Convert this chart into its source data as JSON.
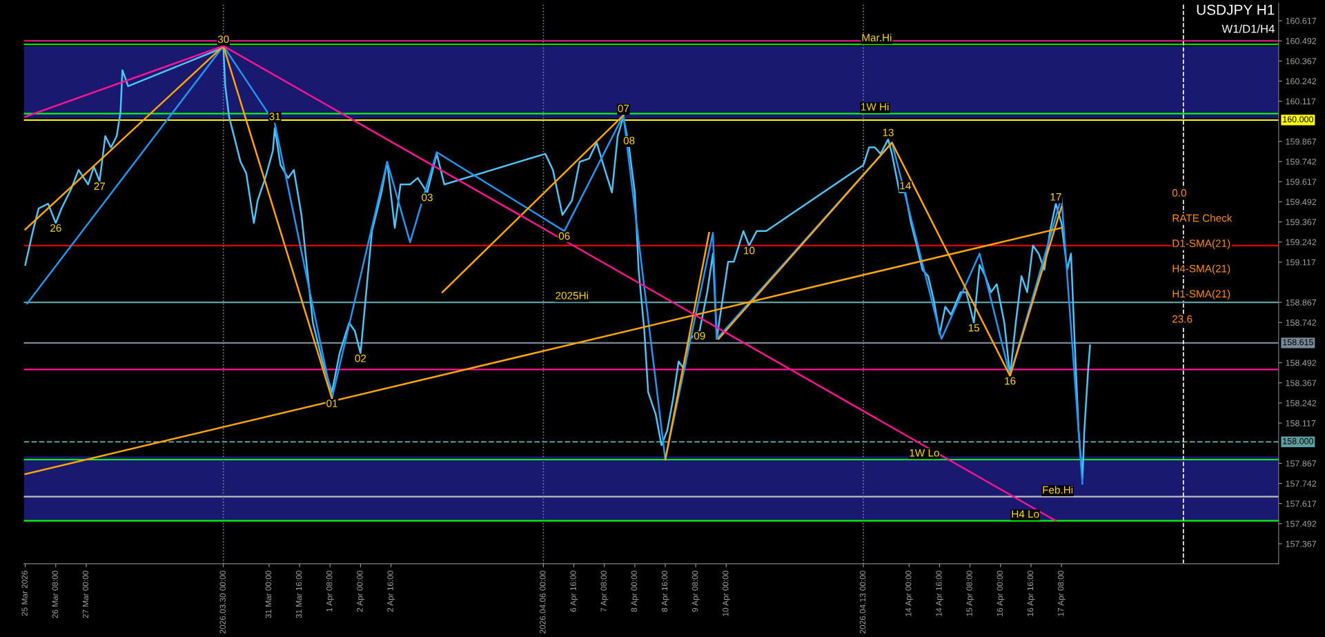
{
  "chart_data": {
    "type": "line",
    "title": "USDJPY H1",
    "subtitle": "W1/D1/H4",
    "xlim": [
      "2026-03-25T15:15",
      "2026-04-22T02:00"
    ],
    "ylim": [
      157.243,
      160.726
    ],
    "xticks": [
      {
        "value": "2026-03-25T16:00",
        "label": "25 Mar 2026"
      },
      {
        "value": "2026-03-26T08:00",
        "label": "26 Mar 08:00"
      },
      {
        "value": "2026-03-27T00:00",
        "label": "27 Mar 00:00"
      },
      {
        "value": "2026-03-30T00:00",
        "label": "2026.03.30 00:00"
      },
      {
        "value": "2026-03-31T00:00",
        "label": "31 Mar 00:00"
      },
      {
        "value": "2026-03-31T16:00",
        "label": "31 Mar 16:00"
      },
      {
        "value": "2026-04-01T08:00",
        "label": "1 Apr 08:00"
      },
      {
        "value": "2026-04-02T00:00",
        "label": "2 Apr 00:00"
      },
      {
        "value": "2026-04-02T16:00",
        "label": "2 Apr 16:00"
      },
      {
        "value": "2026-04-06T00:00",
        "label": "2026.04.06 00:00"
      },
      {
        "value": "2026-04-06T16:00",
        "label": "6 Apr 16:00"
      },
      {
        "value": "2026-04-07T08:00",
        "label": "7 Apr 08:00"
      },
      {
        "value": "2026-04-08T00:00",
        "label": "8 Apr 00:00"
      },
      {
        "value": "2026-04-08T16:00",
        "label": "8 Apr 16:00"
      },
      {
        "value": "2026-04-09T08:00",
        "label": "9 Apr 08:00"
      },
      {
        "value": "2026-04-10T00:00",
        "label": "10 Apr 00:00"
      },
      {
        "value": "2026-04-13T00:00",
        "label": "2026.04.13 00:00"
      },
      {
        "value": "2026-04-14T00:00",
        "label": "14 Apr 00:00"
      },
      {
        "value": "2026-04-14T16:00",
        "label": "14 Apr 16:00"
      },
      {
        "value": "2026-04-15T08:00",
        "label": "15 Apr 08:00"
      },
      {
        "value": "2026-04-16T00:00",
        "label": "16 Apr 00:00"
      },
      {
        "value": "2026-04-16T16:00",
        "label": "16 Apr 16:00"
      },
      {
        "value": "2026-04-17T08:00",
        "label": "17 Apr 08:00"
      }
    ],
    "yticks": [
      160.617,
      160.492,
      160.367,
      160.242,
      160.117,
      159.867,
      159.742,
      159.617,
      159.492,
      159.367,
      159.242,
      159.117,
      158.867,
      158.742,
      158.492,
      158.367,
      158.242,
      158.117,
      157.867,
      157.742,
      157.617,
      157.492,
      157.367
    ],
    "grid": false,
    "legend": false,
    "marker": "none",
    "series": [
      {
        "color": "#4fc3f7",
        "x": [
          "2026-03-25T16:00",
          "2026-03-25T20:00",
          "2026-03-25T23:00",
          "2026-03-26T04:00",
          "2026-03-26T08:00",
          "2026-03-26T11:00",
          "2026-03-26T16:00",
          "2026-03-26T20:00",
          "2026-03-27T01:00",
          "2026-03-27T04:00",
          "2026-03-27T07:00",
          "2026-03-27T10:00",
          "2026-03-27T13:00",
          "2026-03-27T16:00",
          "2026-03-27T18:00",
          "2026-03-27T19:00",
          "2026-03-27T22:00",
          "2026-03-30T00:00",
          "2026-03-30T01:00",
          "2026-03-30T03:00",
          "2026-03-30T06:00",
          "2026-03-30T09:00",
          "2026-03-30T12:00",
          "2026-03-30T16:00",
          "2026-03-30T18:00",
          "2026-03-30T22:00",
          "2026-03-31T02:00",
          "2026-03-31T03:00",
          "2026-03-31T06:00",
          "2026-03-31T10:00",
          "2026-03-31T13:00",
          "2026-03-31T17:00",
          "2026-03-31T20:00",
          "2026-03-31T23:00",
          "2026-04-01T04:00",
          "2026-04-01T09:00",
          "2026-04-01T13:00",
          "2026-04-01T18:00",
          "2026-04-01T21:00",
          "2026-04-02T00:00",
          "2026-04-02T03:00",
          "2026-04-02T06:00",
          "2026-04-02T11:00",
          "2026-04-02T14:00",
          "2026-04-02T18:00",
          "2026-04-02T21:00",
          "2026-04-03T02:00",
          "2026-04-03T06:00",
          "2026-04-03T11:00",
          "2026-04-03T16:00",
          "2026-04-03T20:00",
          "2026-04-06T01:00",
          "2026-04-06T05:00",
          "2026-04-06T10:00",
          "2026-04-06T15:00",
          "2026-04-06T19:00",
          "2026-04-07T00:00",
          "2026-04-07T04:00",
          "2026-04-07T07:00",
          "2026-04-07T12:00",
          "2026-04-07T15:00",
          "2026-04-07T18:00",
          "2026-04-07T21:00",
          "2026-04-08T00:00",
          "2026-04-08T02:00",
          "2026-04-08T05:00",
          "2026-04-08T07:00",
          "2026-04-08T11:00",
          "2026-04-08T14:00",
          "2026-04-08T17:00",
          "2026-04-08T20:00",
          "2026-04-08T23:00",
          "2026-04-09T02:00",
          "2026-04-09T05:00",
          "2026-04-09T10:00",
          "2026-04-09T14:00",
          "2026-04-09T17:00",
          "2026-04-09T19:00",
          "2026-04-09T22:00",
          "2026-04-10T01:00",
          "2026-04-10T04:00",
          "2026-04-10T09:00",
          "2026-04-10T12:00",
          "2026-04-10T16:00",
          "2026-04-10T21:00",
          "2026-04-13T00:00",
          "2026-04-13T03:00",
          "2026-04-13T06:00",
          "2026-04-13T09:00",
          "2026-04-13T13:00",
          "2026-04-13T15:00",
          "2026-04-13T19:00",
          "2026-04-13T22:00",
          "2026-04-14T01:00",
          "2026-04-14T04:00",
          "2026-04-14T07:00",
          "2026-04-14T10:00",
          "2026-04-14T13:00",
          "2026-04-14T16:00",
          "2026-04-14T19:00",
          "2026-04-14T22:00",
          "2026-04-15T03:00",
          "2026-04-15T06:00",
          "2026-04-15T10:00",
          "2026-04-15T13:00",
          "2026-04-15T16:00",
          "2026-04-15T19:00",
          "2026-04-15T22:00",
          "2026-04-16T02:00",
          "2026-04-16T05:00",
          "2026-04-16T08:00",
          "2026-04-16T11:00",
          "2026-04-16T14:00",
          "2026-04-16T17:00",
          "2026-04-16T20:00",
          "2026-04-16T23:00",
          "2026-04-17T02:00",
          "2026-04-17T05:00",
          "2026-04-17T08:00",
          "2026-04-17T11:00",
          "2026-04-17T13:00",
          "2026-04-17T15:00",
          "2026-04-17T17:00",
          "2026-04-17T19:00",
          "2026-04-17T20:00",
          "2026-04-17T22:00",
          "2026-04-17T23:00"
        ],
        "values": [
          159.1,
          159.31,
          159.45,
          159.48,
          159.36,
          159.45,
          159.57,
          159.69,
          159.6,
          159.71,
          159.62,
          159.9,
          159.83,
          159.9,
          160.05,
          160.31,
          160.21,
          160.45,
          160.21,
          160.02,
          159.88,
          159.74,
          159.67,
          159.36,
          159.5,
          159.64,
          159.81,
          159.95,
          159.72,
          159.64,
          159.69,
          159.41,
          159.07,
          158.74,
          158.5,
          158.31,
          158.55,
          158.74,
          158.69,
          158.55,
          158.93,
          159.31,
          159.55,
          159.74,
          159.33,
          159.6,
          159.6,
          159.64,
          159.55,
          159.79,
          159.6,
          159.79,
          159.69,
          159.41,
          159.5,
          159.74,
          159.76,
          159.86,
          159.74,
          159.55,
          159.9,
          160.02,
          159.83,
          159.55,
          159.07,
          158.69,
          158.31,
          158.17,
          157.98,
          158.07,
          158.26,
          158.5,
          158.45,
          158.64,
          158.69,
          158.93,
          159.17,
          158.64,
          158.88,
          159.12,
          159.12,
          159.31,
          159.22,
          159.31,
          159.31,
          159.72,
          159.83,
          159.83,
          159.79,
          159.88,
          159.79,
          159.55,
          159.55,
          159.36,
          159.22,
          159.07,
          159.03,
          158.88,
          158.67,
          158.84,
          158.79,
          158.93,
          158.93,
          158.74,
          159.1,
          159.03,
          158.93,
          158.98,
          158.74,
          158.41,
          158.74,
          159.03,
          158.93,
          159.22,
          159.17,
          159.07,
          159.31,
          159.48,
          159.36,
          159.07,
          159.17,
          158.6,
          158.07,
          157.77,
          158.07,
          158.45,
          158.6
        ]
      },
      {
        "color": "#2196f3",
        "x": [
          "2026-03-25T17:00",
          "2026-03-30T00:00",
          "2026-03-31T03:00",
          "2026-04-01T09:00",
          "2026-04-02T14:00",
          "2026-04-03T02:00",
          "2026-04-03T16:00",
          "2026-04-06T11:00",
          "2026-04-07T18:00",
          "2026-04-08T16:00",
          "2026-04-09T17:00",
          "2026-04-09T19:00",
          "2026-04-13T15:00",
          "2026-04-14T17:00",
          "2026-04-15T13:00",
          "2026-04-16T05:00",
          "2026-04-17T08:00",
          "2026-04-17T19:00"
        ],
        "values": [
          158.86,
          160.46,
          159.98,
          158.27,
          159.74,
          159.24,
          159.8,
          159.31,
          160.03,
          157.89,
          159.3,
          158.64,
          159.86,
          158.64,
          159.17,
          158.41,
          159.52,
          157.74
        ]
      },
      {
        "color": "#ffa500",
        "x": [
          "2026-03-25T16:00",
          "2026-03-30T00:00",
          "2026-04-01T09:00"
        ],
        "values": [
          159.32,
          160.46,
          158.27
        ]
      },
      {
        "color": "#ffa500",
        "x": [
          "2026-04-03T19:00",
          "2026-04-07T18:00"
        ],
        "values": [
          158.93,
          160.03
        ]
      },
      {
        "color": "#ffa500",
        "x": [
          "2026-04-08T16:00",
          "2026-04-09T15:00"
        ],
        "values": [
          157.89,
          159.3
        ]
      },
      {
        "color": "#ffa500",
        "x": [
          "2026-04-09T20:00",
          "2026-04-13T15:00",
          "2026-04-16T05:00",
          "2026-04-17T08:00"
        ],
        "values": [
          158.64,
          159.86,
          158.41,
          159.46
        ]
      },
      {
        "color": "#ffa500",
        "x": [
          "2026-03-25T16:00",
          "2026-04-17T08:00"
        ],
        "values": [
          157.8,
          159.33
        ]
      },
      {
        "color": "#ff1493",
        "x": [
          "2026-03-25T16:00",
          "2026-03-30T00:00",
          "2026-04-17T05:00"
        ],
        "values": [
          160.02,
          160.46,
          157.51
        ]
      }
    ],
    "bands": [
      {
        "axis": "y",
        "from": 160.01,
        "to": 160.46,
        "color": "#191970"
      },
      {
        "axis": "y",
        "from": 157.51,
        "to": 157.91,
        "color": "#191970"
      }
    ],
    "ref_lines": [
      {
        "axis": "y",
        "value": 160.0,
        "label": "160.000",
        "color": "#ffff00"
      },
      {
        "axis": "y",
        "value": 158.615,
        "label": "158.615",
        "color": "#778899"
      },
      {
        "axis": "y",
        "value": 158.0,
        "label": "158.000",
        "color": "#5f9ea0",
        "line_style": "dashed"
      },
      {
        "axis": "y",
        "value": 158.867,
        "color": "#5f9ea0"
      },
      {
        "axis": "y",
        "value": 159.22,
        "color": "#ff0000"
      },
      {
        "axis": "y",
        "value": 160.492,
        "color": "#ff1493"
      },
      {
        "axis": "y",
        "value": 158.45,
        "color": "#ff1493"
      },
      {
        "axis": "y",
        "value": 160.47,
        "color": "#00ff00"
      },
      {
        "axis": "y",
        "value": 160.04,
        "color": "#00ff00"
      },
      {
        "axis": "y",
        "value": 157.89,
        "color": "#00ff00"
      },
      {
        "axis": "y",
        "value": 157.51,
        "color": "#00ff00"
      },
      {
        "axis": "y",
        "value": 157.66,
        "color": "#c0c0c0"
      },
      {
        "axis": "x",
        "value": "2026-03-30T00:00",
        "color": "#778899",
        "line_style": "dotted"
      },
      {
        "axis": "x",
        "value": "2026-04-06T00:00",
        "color": "#778899",
        "line_style": "dotted"
      },
      {
        "axis": "x",
        "value": "2026-04-13T00:00",
        "color": "#778899",
        "line_style": "dotted"
      },
      {
        "axis": "x",
        "value": "2026-04-20T00:00",
        "color": "#ffffff",
        "line_style": "dashed"
      }
    ],
    "annotations": [
      {
        "text": "30",
        "x": "2026-03-30T00:00",
        "y": 160.46
      },
      {
        "text": "31",
        "x": "2026-03-31T03:00",
        "y": 159.98
      },
      {
        "text": "26",
        "x": "2026-03-26T08:00",
        "y": 159.36
      },
      {
        "text": "27",
        "x": "2026-03-27T07:00",
        "y": 159.62
      },
      {
        "text": "01",
        "x": "2026-04-01T09:00",
        "y": 158.27
      },
      {
        "text": "02",
        "x": "2026-04-02T00:00",
        "y": 158.55
      },
      {
        "text": "03",
        "x": "2026-04-03T11:00",
        "y": 159.55
      },
      {
        "text": "06",
        "x": "2026-04-06T11:00",
        "y": 159.31
      },
      {
        "text": "07",
        "x": "2026-04-07T18:00",
        "y": 160.03
      },
      {
        "text": "08",
        "x": "2026-04-07T21:00",
        "y": 159.83
      },
      {
        "text": "09",
        "x": "2026-04-09T10:00",
        "y": 158.69
      },
      {
        "text": "10",
        "x": "2026-04-10T12:00",
        "y": 159.22
      },
      {
        "text": "13",
        "x": "2026-04-13T13:00",
        "y": 159.88
      },
      {
        "text": "14",
        "x": "2026-04-13T22:00",
        "y": 159.55
      },
      {
        "text": "15",
        "x": "2026-04-15T10:00",
        "y": 158.74
      },
      {
        "text": "16",
        "x": "2026-04-16T05:00",
        "y": 158.41
      },
      {
        "text": "17",
        "x": "2026-04-17T05:00",
        "y": 159.48
      },
      {
        "text": "Mar.Hi",
        "x": "2026-04-13T07:00",
        "y": 160.47
      },
      {
        "text": "1W Hi",
        "x": "2026-04-13T06:00",
        "y": 160.04
      },
      {
        "text": "1W Lo",
        "x": "2026-04-14T08:00",
        "y": 157.89
      },
      {
        "text": "H4 Lo",
        "x": "2026-04-16T13:00",
        "y": 157.51
      },
      {
        "text": "Feb.Hi",
        "x": "2026-04-17T06:00",
        "y": 157.66
      },
      {
        "text": "2025Hi",
        "x": "2026-04-06T15:00",
        "y": 158.867
      },
      "0.0",
      "RATE Check",
      "D1-SMA(21)",
      "H4-SMA(21)",
      "H1-SMA(21)",
      "23.6"
    ]
  }
}
